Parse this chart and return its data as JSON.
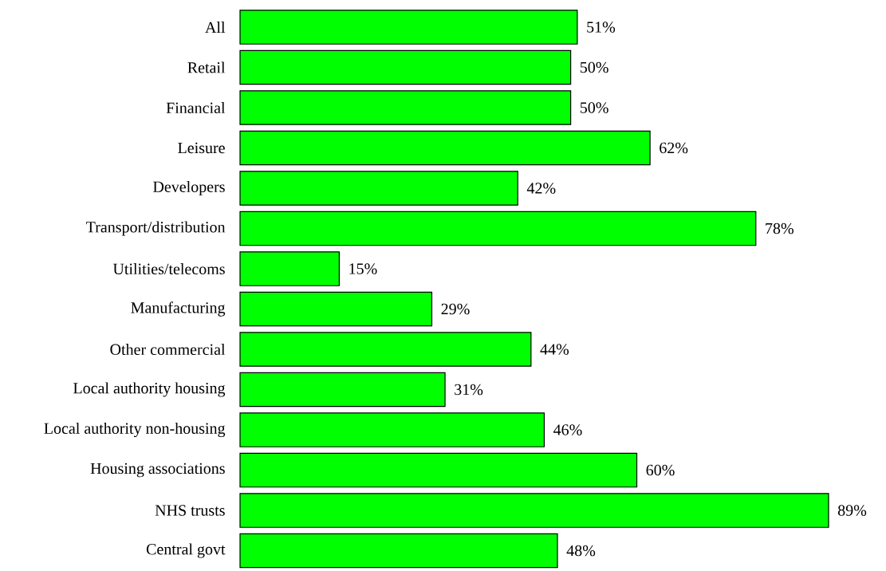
{
  "chart_data": {
    "type": "bar",
    "orientation": "horizontal",
    "color": "#00ff00",
    "categories": [
      "All",
      "Retail",
      "Financial",
      "Leisure",
      "Developers",
      "Transport/distribution",
      "Utilities/telecoms",
      "Manufacturing",
      "Other commercial",
      "Local authority housing",
      "Local authority non-housing",
      "Housing associations",
      "NHS trusts",
      "Central govt"
    ],
    "values": [
      51,
      50,
      50,
      62,
      42,
      78,
      15,
      29,
      44,
      31,
      46,
      60,
      89,
      48
    ],
    "value_labels": [
      "51%",
      "50%",
      "50%",
      "62%",
      "42%",
      "78%",
      "15%",
      "29%",
      "44%",
      "31%",
      "46%",
      "60%",
      "89%",
      "48%"
    ]
  }
}
